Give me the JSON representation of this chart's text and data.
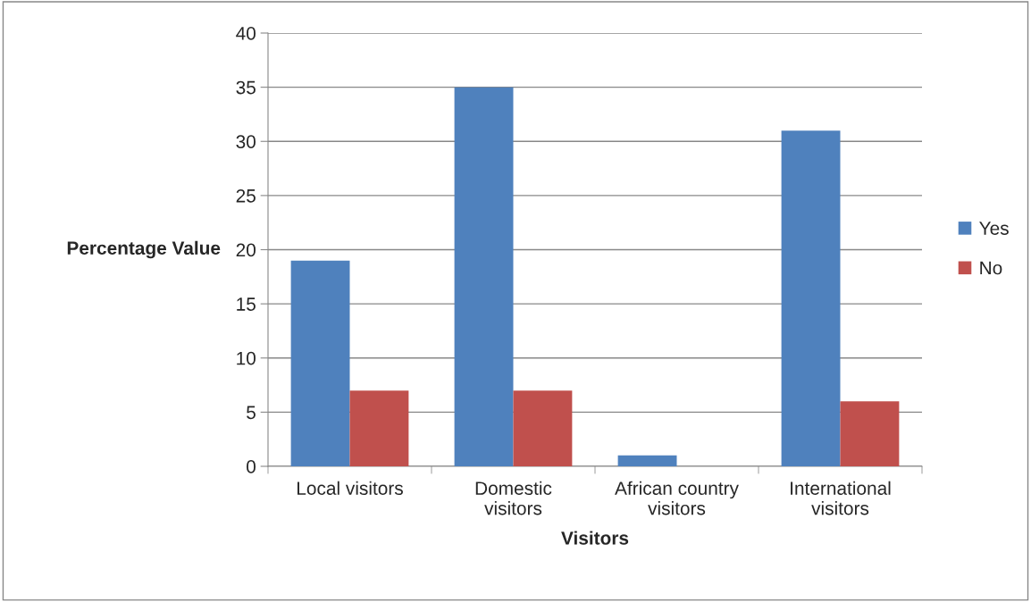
{
  "chart_data": {
    "type": "bar",
    "xlabel": "Visitors",
    "ylabel": "Percentage Value",
    "categories": [
      "Local visitors",
      "Domestic visitors",
      "African country visitors",
      "International visitors"
    ],
    "series": [
      {
        "name": "Yes",
        "color": "#4f81bd",
        "values": [
          19,
          35,
          1,
          31
        ]
      },
      {
        "name": "No",
        "color": "#c0504d",
        "values": [
          7,
          7,
          null,
          6
        ]
      }
    ],
    "ylim": [
      0,
      40
    ],
    "yticks": [
      0,
      5,
      10,
      15,
      20,
      25,
      30,
      35,
      40
    ],
    "grid": "y",
    "legend": "right"
  }
}
